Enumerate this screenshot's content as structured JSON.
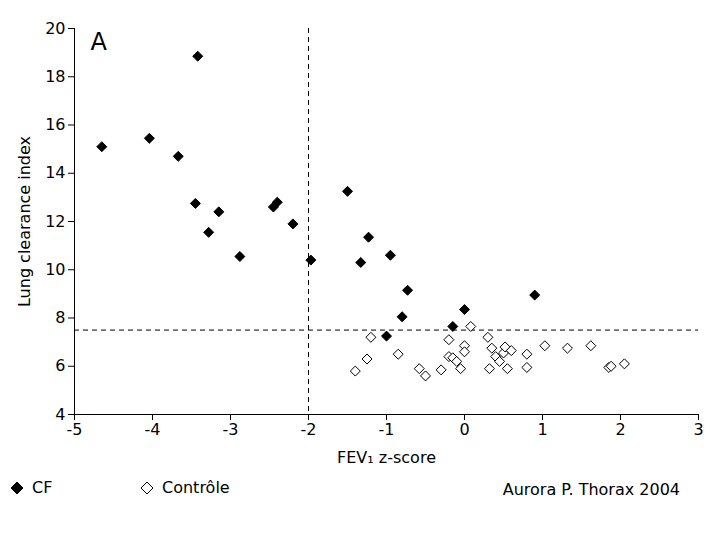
{
  "chart_data": {
    "type": "scatter",
    "panel_label": "A",
    "source": "Aurora P. Thorax 2004",
    "x_label": "FEV₁ z-score",
    "y_label": "Lung clearance index",
    "xlim": [
      -5,
      3
    ],
    "xticks": [
      -5,
      -4,
      -3,
      -2,
      -1,
      0,
      1,
      2,
      3
    ],
    "ylim": [
      4,
      20
    ],
    "yticks": [
      4,
      6,
      8,
      10,
      12,
      14,
      16,
      18,
      20
    ],
    "reference_lines": {
      "x": -2,
      "y": 7.5
    },
    "legend": "bottom-left",
    "series": [
      {
        "name": "CF",
        "color": "#000000",
        "marker": "diamond",
        "x": [
          -4.65,
          -4.04,
          -3.67,
          -3.42,
          -3.45,
          -3.28,
          -3.15,
          -2.88,
          -2.45,
          -2.4,
          -2.2,
          -1.97,
          -1.5,
          -1.33,
          -1.23,
          -0.95,
          -0.73,
          -0.8,
          -1.0,
          -0.15,
          0.0,
          0.9
        ],
        "values": [
          15.1,
          15.45,
          14.7,
          18.85,
          12.75,
          11.55,
          12.4,
          10.55,
          12.6,
          12.8,
          11.9,
          10.4,
          13.25,
          10.3,
          11.35,
          10.6,
          9.15,
          8.05,
          7.25,
          7.65,
          8.35,
          8.95
        ]
      },
      {
        "name": "Contrôle",
        "color": "#000000",
        "marker": "open_diamond",
        "x": [
          -1.4,
          -1.2,
          -1.25,
          -0.85,
          -0.58,
          -0.5,
          -0.3,
          -0.2,
          -0.2,
          -0.15,
          -0.05,
          -0.1,
          0.0,
          0.0,
          0.08,
          0.3,
          0.32,
          0.35,
          0.4,
          0.45,
          0.5,
          0.52,
          0.55,
          0.6,
          0.8,
          0.8,
          1.03,
          1.32,
          1.62,
          1.85,
          1.88,
          2.05
        ],
        "values": [
          5.8,
          7.2,
          6.3,
          6.5,
          5.9,
          5.6,
          5.85,
          6.4,
          7.1,
          6.35,
          5.9,
          6.2,
          6.85,
          6.6,
          7.65,
          7.2,
          5.9,
          6.75,
          6.4,
          6.2,
          6.55,
          6.8,
          5.9,
          6.65,
          6.5,
          5.95,
          6.85,
          6.75,
          6.85,
          5.95,
          6.0,
          6.1
        ]
      }
    ]
  }
}
